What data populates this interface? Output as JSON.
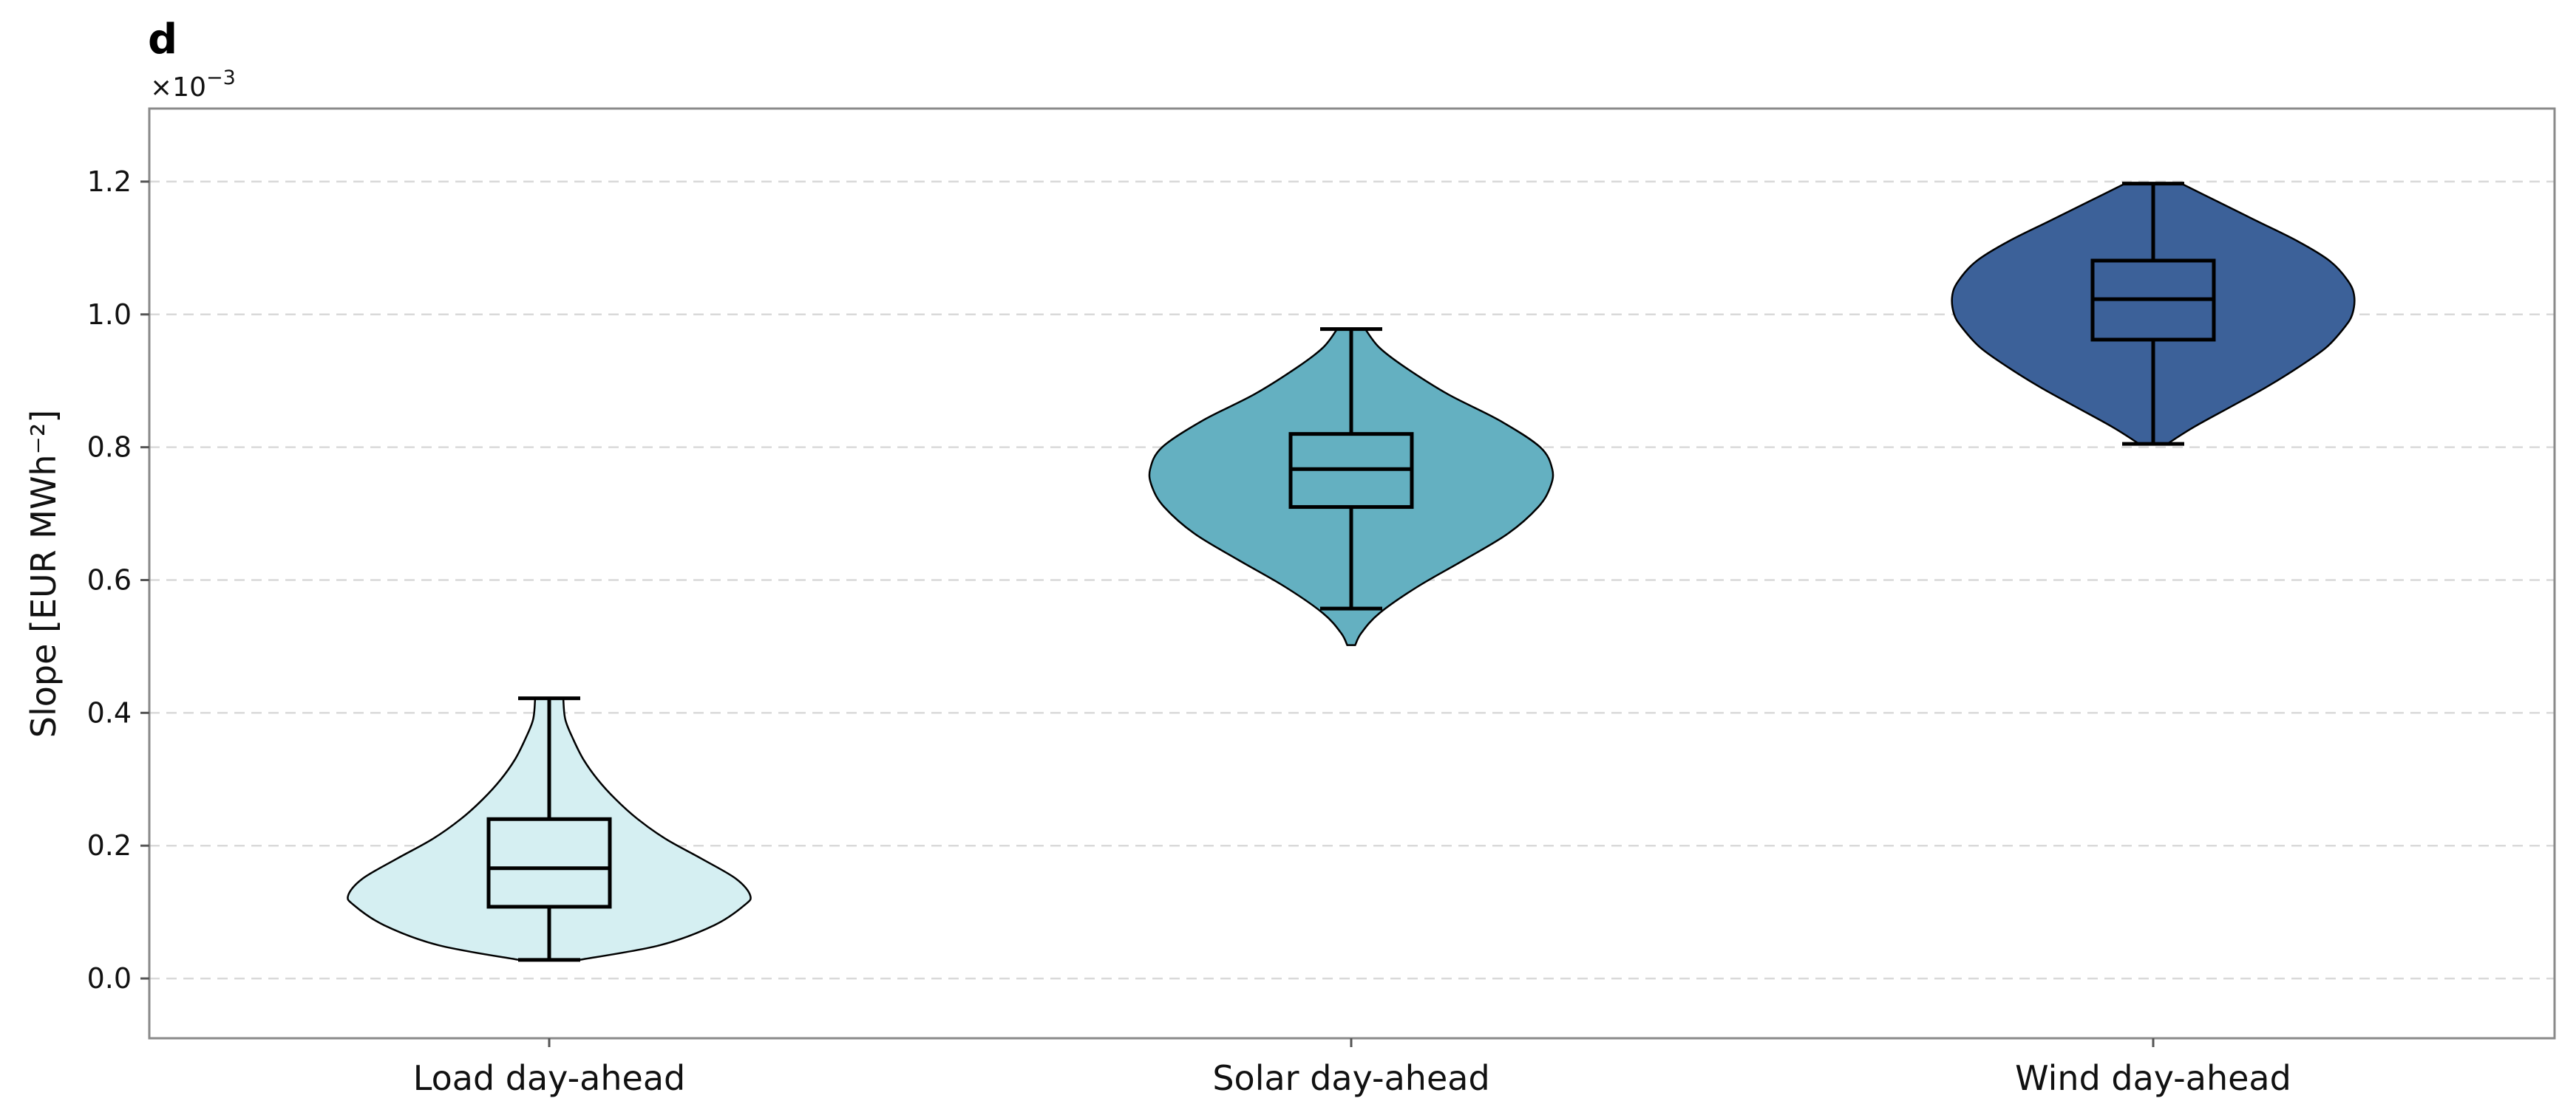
{
  "panel_label": "d",
  "exponent_label": "×10",
  "exponent_power": "−3",
  "chart_data": {
    "type": "violin",
    "title": "",
    "xlabel": "",
    "ylabel": "Slope [EUR MWh⁻²]",
    "y_scale_factor": "1e-3",
    "ylim": [
      -0.09,
      1.31
    ],
    "yticks": [
      0.0,
      0.2,
      0.4,
      0.6,
      0.8,
      1.0,
      1.2
    ],
    "ytick_labels": [
      "0.0",
      "0.2",
      "0.4",
      "0.6",
      "0.8",
      "1.0",
      "1.2"
    ],
    "grid": "horizontal dashed",
    "categories": [
      "Load day-ahead",
      "Solar day-ahead",
      "Wind day-ahead"
    ],
    "series": [
      {
        "category": "Load day-ahead",
        "color": "#d5eff2",
        "min": 0.028,
        "q1": 0.108,
        "median": 0.166,
        "q3": 0.24,
        "max": 0.422,
        "density_y": [
          0.028,
          0.05,
          0.08,
          0.11,
          0.125,
          0.15,
          0.18,
          0.21,
          0.24,
          0.27,
          0.3,
          0.33,
          0.36,
          0.39,
          0.422
        ],
        "density_w": [
          0.15,
          0.55,
          0.82,
          0.97,
          1.0,
          0.93,
          0.76,
          0.58,
          0.44,
          0.33,
          0.24,
          0.17,
          0.12,
          0.08,
          0.07
        ]
      },
      {
        "category": "Solar day-ahead",
        "color": "#64b0c1",
        "min": 0.557,
        "q1": 0.71,
        "median": 0.767,
        "q3": 0.82,
        "max": 0.978,
        "density_y": [
          0.502,
          0.52,
          0.55,
          0.59,
          0.63,
          0.67,
          0.71,
          0.74,
          0.767,
          0.8,
          0.84,
          0.88,
          0.92,
          0.95,
          0.978
        ],
        "density_w": [
          0.02,
          0.05,
          0.14,
          0.33,
          0.56,
          0.78,
          0.93,
          0.99,
          1.0,
          0.94,
          0.74,
          0.48,
          0.27,
          0.14,
          0.07
        ]
      },
      {
        "category": "Wind day-ahead",
        "color": "#3c6199",
        "min": 0.805,
        "q1": 0.962,
        "median": 1.023,
        "q3": 1.081,
        "max": 1.197,
        "density_y": [
          0.805,
          0.83,
          0.86,
          0.89,
          0.92,
          0.95,
          0.98,
          1.0,
          1.027,
          1.05,
          1.08,
          1.11,
          1.14,
          1.17,
          1.197
        ],
        "density_w": [
          0.07,
          0.2,
          0.38,
          0.56,
          0.72,
          0.86,
          0.95,
          0.99,
          1.0,
          0.97,
          0.88,
          0.72,
          0.52,
          0.32,
          0.14
        ]
      }
    ]
  }
}
